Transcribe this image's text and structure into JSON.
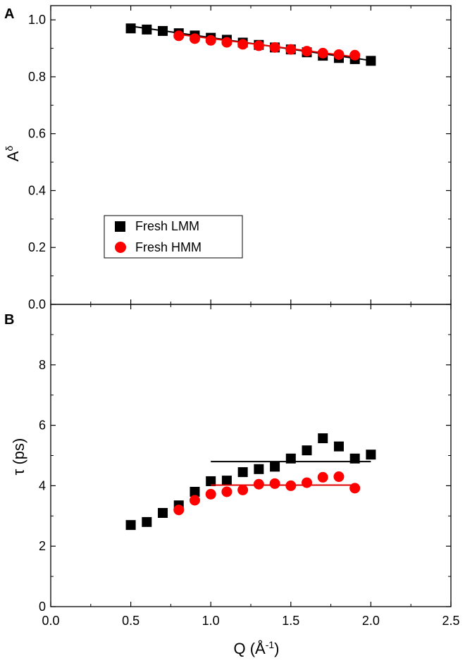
{
  "chart_data": [
    {
      "panel": "A",
      "type": "scatter",
      "ylabel": "A",
      "ylabel_superscript": "δ",
      "xlabel": "",
      "xlim": [
        0.0,
        2.5
      ],
      "ylim": [
        0.0,
        1.05
      ],
      "x_ticks": [
        0.0,
        0.5,
        1.0,
        1.5,
        2.0,
        2.5
      ],
      "y_ticks": [
        "0.0",
        "0.2",
        "0.4",
        "0.6",
        "0.8",
        "1.0"
      ],
      "grid": false,
      "legend": {
        "placement": "center-left",
        "entries": [
          {
            "name": "Fresh LMM",
            "marker": "square",
            "color": "#000000"
          },
          {
            "name": "Fresh HMM",
            "marker": "circle",
            "color": "#ff0000"
          }
        ]
      },
      "series": [
        {
          "name": "Fresh LMM",
          "marker": "square",
          "color": "#000000",
          "x": [
            0.5,
            0.6,
            0.7,
            0.8,
            0.9,
            1.0,
            1.1,
            1.2,
            1.3,
            1.4,
            1.5,
            1.6,
            1.7,
            1.8,
            1.9,
            2.0
          ],
          "y": [
            0.97,
            0.966,
            0.961,
            0.953,
            0.945,
            0.937,
            0.93,
            0.92,
            0.912,
            0.903,
            0.896,
            0.886,
            0.874,
            0.866,
            0.862,
            0.856
          ],
          "fit": {
            "x": [
              0.5,
              2.0
            ],
            "y": [
              0.978,
              0.857
            ],
            "color": "#000000"
          }
        },
        {
          "name": "Fresh HMM",
          "marker": "circle",
          "color": "#ff0000",
          "x": [
            0.8,
            0.9,
            1.0,
            1.1,
            1.2,
            1.3,
            1.4,
            1.5,
            1.6,
            1.7,
            1.8,
            1.9
          ],
          "y": [
            0.944,
            0.934,
            0.928,
            0.921,
            0.914,
            0.909,
            0.903,
            0.896,
            0.89,
            0.883,
            0.878,
            0.876
          ],
          "fit": {
            "x": [
              0.8,
              1.9
            ],
            "y": [
              0.949,
              0.87
            ],
            "color": "#e00000"
          }
        }
      ]
    },
    {
      "panel": "B",
      "type": "scatter",
      "ylabel": "τ (ps)",
      "xlabel": "Q (Å",
      "xlabel_superscript": "-1",
      "xlabel_suffix": ")",
      "xlim": [
        0.0,
        2.5
      ],
      "ylim": [
        0,
        10
      ],
      "x_ticks": [
        "0.0",
        "0.5",
        "1.0",
        "1.5",
        "2.0",
        "2.5"
      ],
      "y_ticks": [
        "0",
        "2",
        "4",
        "6",
        "8"
      ],
      "grid": false,
      "series": [
        {
          "name": "Fresh LMM",
          "marker": "square",
          "color": "#000000",
          "x": [
            0.5,
            0.6,
            0.7,
            0.8,
            0.9,
            1.0,
            1.1,
            1.2,
            1.3,
            1.4,
            1.5,
            1.6,
            1.7,
            1.8,
            1.9,
            2.0
          ],
          "y": [
            2.7,
            2.8,
            3.1,
            3.35,
            3.8,
            4.15,
            4.17,
            4.45,
            4.55,
            4.63,
            4.9,
            5.17,
            5.57,
            5.3,
            4.9,
            5.03
          ],
          "fit": {
            "x": [
              1.0,
              2.0
            ],
            "y": [
              4.8,
              4.8
            ],
            "color": "#000000"
          }
        },
        {
          "name": "Fresh HMM",
          "marker": "circle",
          "color": "#ff0000",
          "x": [
            0.8,
            0.9,
            1.0,
            1.1,
            1.2,
            1.3,
            1.4,
            1.5,
            1.6,
            1.7,
            1.8,
            1.9
          ],
          "y": [
            3.2,
            3.52,
            3.72,
            3.8,
            3.86,
            4.05,
            4.07,
            4.0,
            4.1,
            4.28,
            4.3,
            3.92
          ],
          "fit": {
            "x": [
              1.0,
              1.9
            ],
            "y": [
              4.02,
              4.02
            ],
            "color": "#e00000"
          }
        }
      ]
    }
  ]
}
